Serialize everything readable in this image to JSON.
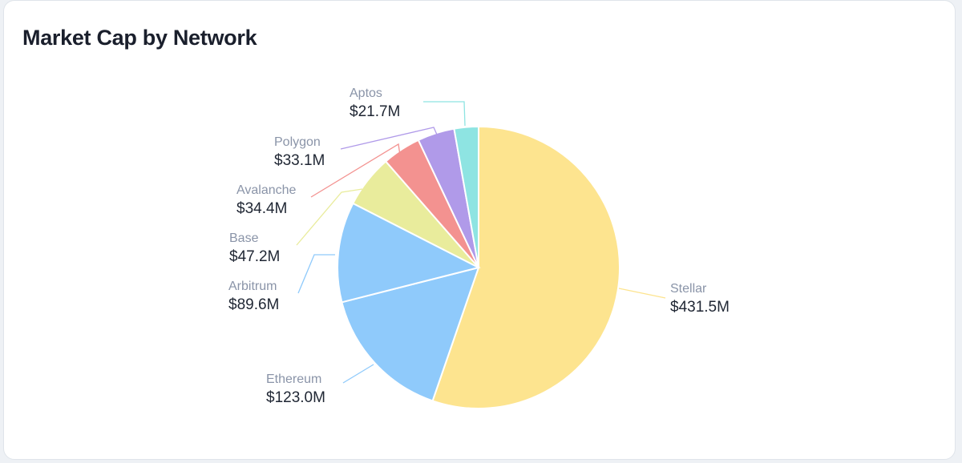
{
  "card": {
    "title": "Market Cap by Network"
  },
  "chart_data": {
    "type": "pie",
    "title": "Market Cap by Network",
    "unit": "$M",
    "slices": [
      {
        "name": "Stellar",
        "value": 431.5,
        "label": "$431.5M",
        "color": "#fde48f"
      },
      {
        "name": "Ethereum",
        "value": 123.0,
        "label": "$123.0M",
        "color": "#8fcafb"
      },
      {
        "name": "Arbitrum",
        "value": 89.6,
        "label": "$89.6M",
        "color": "#8fcafb"
      },
      {
        "name": "Base",
        "value": 47.2,
        "label": "$47.2M",
        "color": "#e9ec9c"
      },
      {
        "name": "Avalanche",
        "value": 34.4,
        "label": "$34.4M",
        "color": "#f39290"
      },
      {
        "name": "Polygon",
        "value": 33.1,
        "label": "$33.1M",
        "color": "#b09ae9"
      },
      {
        "name": "Aptos",
        "value": 21.7,
        "label": "$21.7M",
        "color": "#8ee4e2"
      }
    ]
  }
}
